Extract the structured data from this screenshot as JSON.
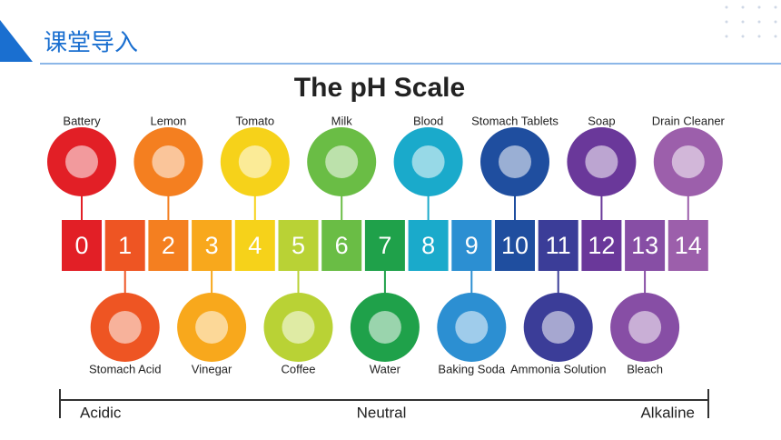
{
  "header": {
    "title": "课堂导入"
  },
  "scale": {
    "title": "The pH Scale",
    "levels": [
      {
        "label": "0",
        "color": "#e21f26"
      },
      {
        "label": "1",
        "color": "#ee5523"
      },
      {
        "label": "2",
        "color": "#f47f20"
      },
      {
        "label": "3",
        "color": "#f8a81c"
      },
      {
        "label": "4",
        "color": "#f6d21a"
      },
      {
        "label": "5",
        "color": "#b9d235"
      },
      {
        "label": "6",
        "color": "#6abd45"
      },
      {
        "label": "7",
        "color": "#1fa14a"
      },
      {
        "label": "8",
        "color": "#1aaacb"
      },
      {
        "label": "9",
        "color": "#2c8fd2"
      },
      {
        "label": "10",
        "color": "#1f4e9f"
      },
      {
        "label": "11",
        "color": "#3b3d98"
      },
      {
        "label": "12",
        "color": "#6a389a"
      },
      {
        "label": "13",
        "color": "#874ea5"
      },
      {
        "label": "14",
        "color": "#9c5fab"
      }
    ],
    "top_items": [
      {
        "label": "Battery",
        "level": 0
      },
      {
        "label": "Lemon",
        "level": 2
      },
      {
        "label": "Tomato",
        "level": 4
      },
      {
        "label": "Milk",
        "level": 6
      },
      {
        "label": "Blood",
        "level": 8
      },
      {
        "label": "Stomach Tablets",
        "level": 10
      },
      {
        "label": "Soap",
        "level": 12
      },
      {
        "label": "Drain Cleaner",
        "level": 14
      }
    ],
    "bottom_items": [
      {
        "label": "Stomach Acid",
        "level": 1
      },
      {
        "label": "Vinegar",
        "level": 3
      },
      {
        "label": "Coffee",
        "level": 5
      },
      {
        "label": "Water",
        "level": 7
      },
      {
        "label": "Baking Soda",
        "level": 9
      },
      {
        "label": "Ammonia Solution",
        "level": 11
      },
      {
        "label": "Bleach",
        "level": 13
      }
    ],
    "axis_labels": {
      "left": "Acidic",
      "middle": "Neutral",
      "right": "Alkaline"
    }
  }
}
